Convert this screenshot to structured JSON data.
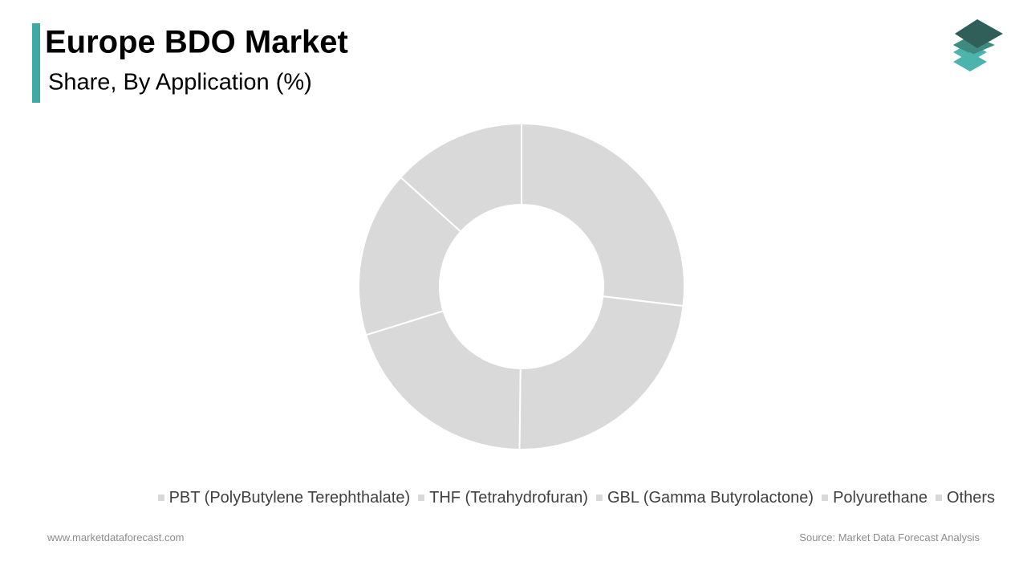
{
  "chart_data": {
    "type": "donut",
    "title": "Europe BDO Market",
    "subtitle": "Share, By Application (%)",
    "categories": [
      "PBT (PolyButylene Terephthalate)",
      "THF (Tetrahydrofuran)",
      "GBL (Gamma Butyrolactone)",
      "Polyurethane",
      "Others"
    ],
    "values": [
      26.9,
      23.3,
      20.0,
      16.5,
      13.3
    ],
    "colors": [
      "#d9d9d9",
      "#d9d9d9",
      "#d9d9d9",
      "#d9d9d9",
      "#d9d9d9"
    ],
    "legend": "bottom"
  },
  "footer": {
    "website": "www.marketdataforecast.com",
    "source": "Source: Market Data Forecast Analysis"
  }
}
